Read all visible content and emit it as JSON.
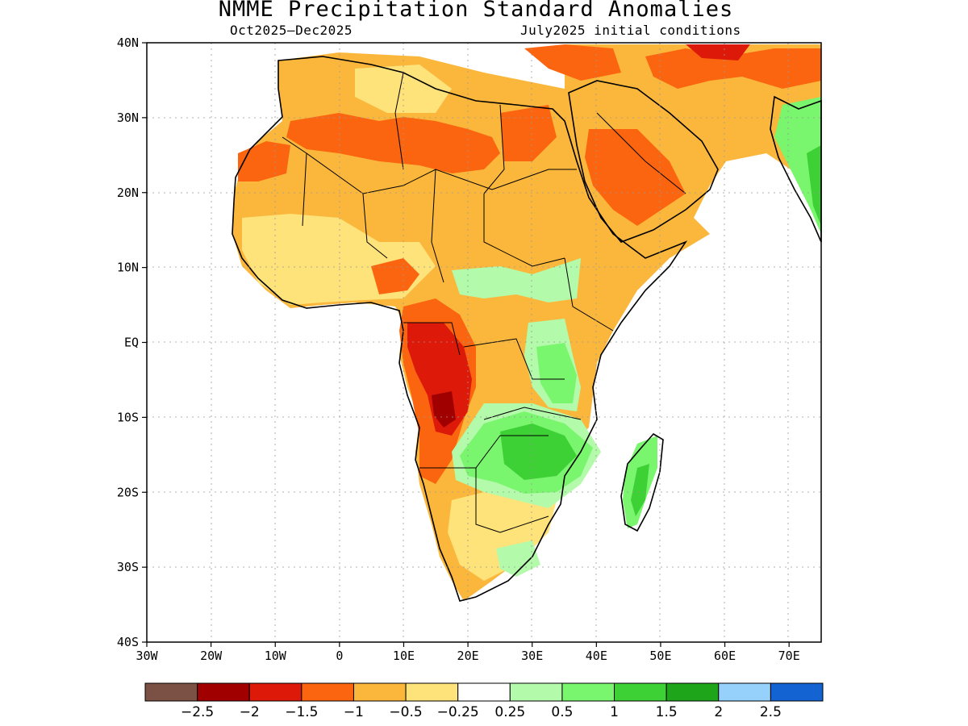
{
  "title": "NMME Precipitation Standard Anomalies",
  "subtitle_left": "Oct2025–Dec2025",
  "subtitle_right": "July2025 initial conditions",
  "lat_ticks": [
    {
      "label": "40N",
      "lat": 40
    },
    {
      "label": "30N",
      "lat": 30
    },
    {
      "label": "20N",
      "lat": 20
    },
    {
      "label": "10N",
      "lat": 10
    },
    {
      "label": "EQ",
      "lat": 0
    },
    {
      "label": "10S",
      "lat": -10
    },
    {
      "label": "20S",
      "lat": -20
    },
    {
      "label": "30S",
      "lat": -30
    },
    {
      "label": "40S",
      "lat": -40
    }
  ],
  "lon_ticks": [
    {
      "label": "30W",
      "lon": -30
    },
    {
      "label": "20W",
      "lon": -20
    },
    {
      "label": "10W",
      "lon": -10
    },
    {
      "label": "0",
      "lon": 0
    },
    {
      "label": "10E",
      "lon": 10
    },
    {
      "label": "20E",
      "lon": 20
    },
    {
      "label": "30E",
      "lon": 30
    },
    {
      "label": "40E",
      "lon": 40
    },
    {
      "label": "50E",
      "lon": 50
    },
    {
      "label": "60E",
      "lon": 60
    },
    {
      "label": "70E",
      "lon": 70
    }
  ],
  "colorbar": {
    "colors": [
      "#7a5144",
      "#a00000",
      "#dd1a0a",
      "#fb6510",
      "#fbb73c",
      "#fee27a",
      "#ffffff",
      "#b3fbab",
      "#7af56e",
      "#3ed136",
      "#1ea51a",
      "#96d1fb",
      "#1463d3"
    ],
    "labels": [
      "−2.5",
      "−2",
      "−1.5",
      "−1",
      "−0.5",
      "−0.25",
      "0.25",
      "0.5",
      "1",
      "1.5",
      "2",
      "2.5"
    ]
  },
  "legend_colors": {
    "dry_strong": "#a00000",
    "dry_moderate": "#fb6510",
    "dry_light": "#fbb73c",
    "dry_weak": "#fee27a",
    "wet_weak": "#b3fbab",
    "wet_light": "#7af56e",
    "wet_moderate": "#3ed136"
  }
}
